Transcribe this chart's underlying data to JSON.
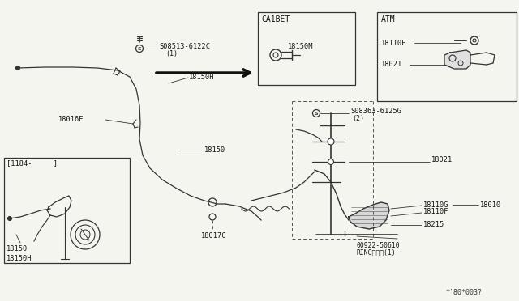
{
  "bg_color": "#f5f5f0",
  "line_color": "#333333",
  "fig_width": 6.4,
  "fig_height": 3.72,
  "labels": {
    "bolt_label": "S08513-6122C",
    "bolt_sub": "(1)",
    "18150H_top": "18150H",
    "18016E": "18016E",
    "18150_mid": "18150",
    "inset_bracket": "[1184-     ]",
    "18150_inset": "18150",
    "18150H_inset": "18150H",
    "18017C": "18017C",
    "CA1BET": "CA1BET",
    "18150M": "18150M",
    "ATM": "ATM",
    "18110E": "18110E",
    "18021_atm": "18021",
    "bolt2_label": "S08363-6125G",
    "bolt2_sub": "(2)",
    "18021_main": "18021",
    "18110G": "18110G",
    "18010": "18010",
    "18110F": "18110F",
    "18215": "18215",
    "00922": "00922-50610",
    "ring": "RINGリング(1)",
    "doc_num": "^'80*003?"
  }
}
